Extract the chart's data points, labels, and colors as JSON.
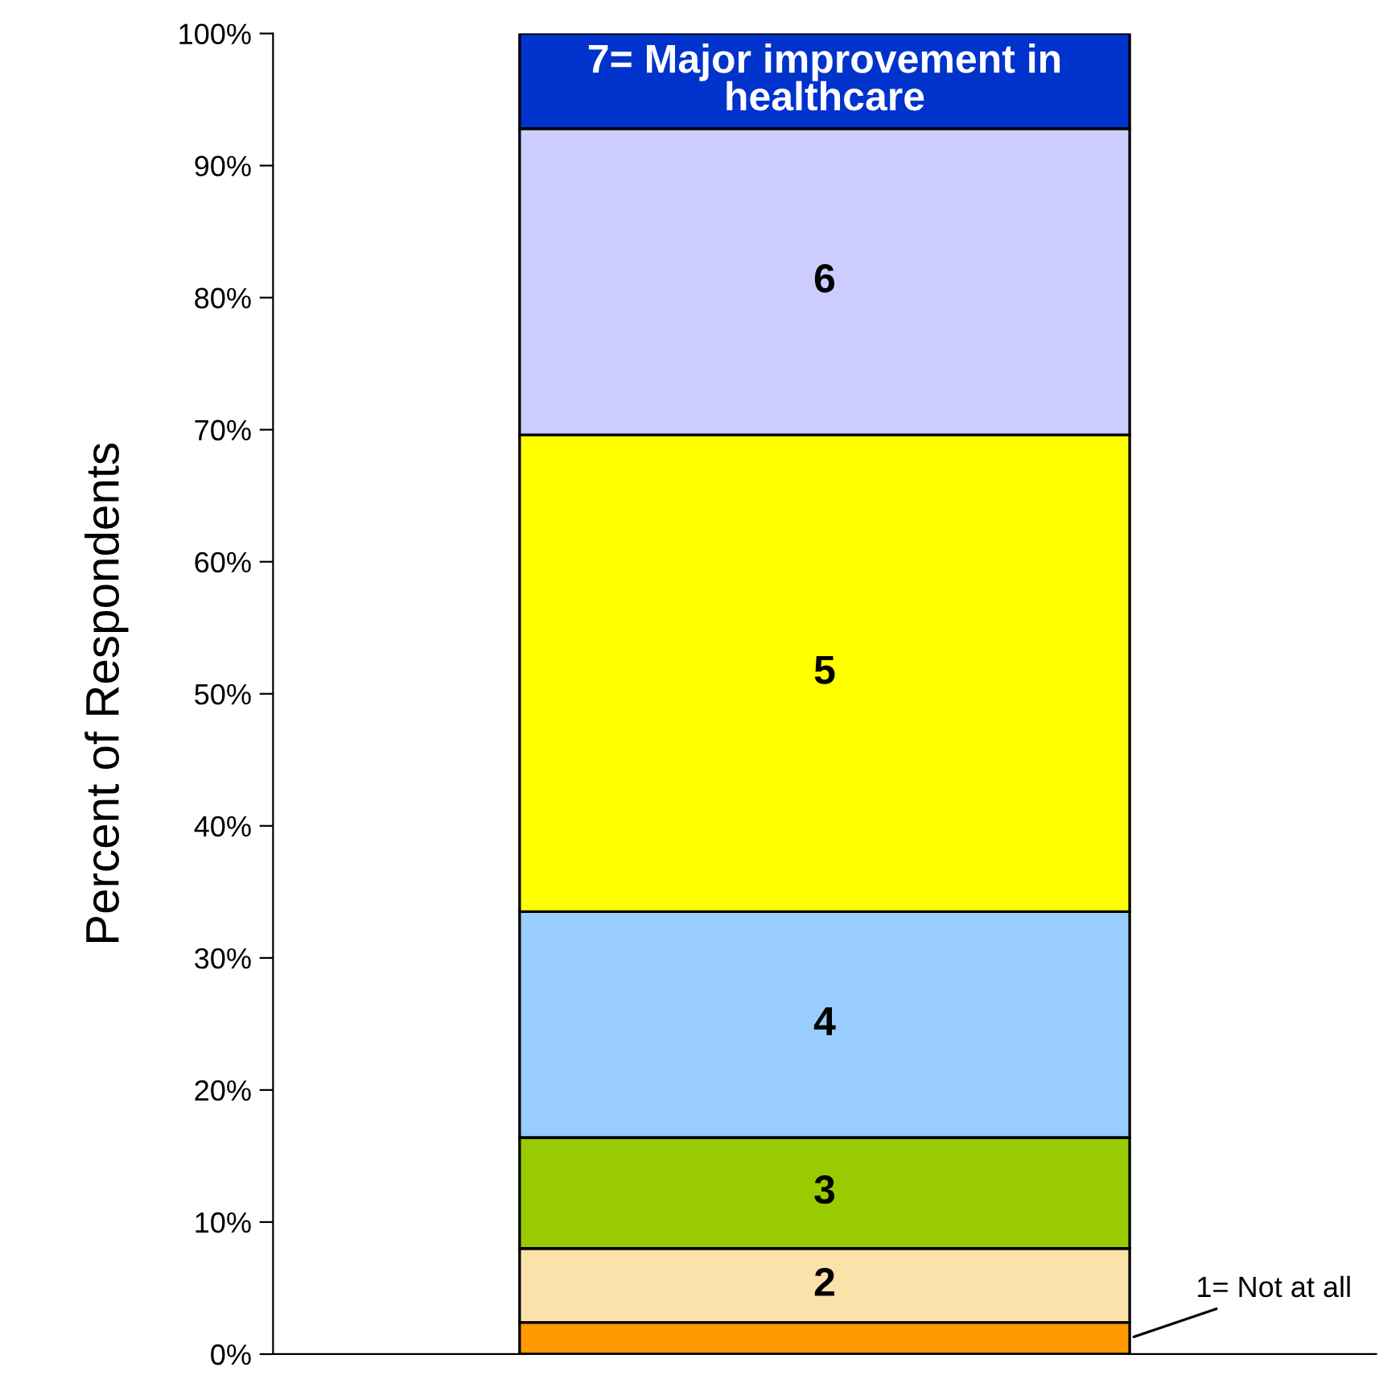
{
  "chart_data": {
    "type": "bar",
    "stacked": true,
    "ylabel": "Percent of Respondents",
    "categories": [
      null
    ],
    "series": [
      {
        "name": "1= Not at all",
        "color": "#ff9900",
        "values": [
          2.4
        ]
      },
      {
        "name": "2",
        "color": "#fae2aa",
        "values": [
          5.6
        ]
      },
      {
        "name": "3",
        "color": "#99cc00",
        "values": [
          8.4
        ]
      },
      {
        "name": "4",
        "color": "#99ccff",
        "values": [
          17.1
        ]
      },
      {
        "name": "5",
        "color": "#ffff00",
        "values": [
          36.1
        ]
      },
      {
        "name": "6",
        "color": "#ccccff",
        "values": [
          23.2
        ]
      },
      {
        "name": "7= Major improvement in healthcare",
        "color": "#0033cc",
        "values": [
          7.2
        ]
      }
    ],
    "ylim": [
      0,
      100
    ],
    "yticks": [
      {
        "value": 0,
        "label": "0%"
      },
      {
        "value": 10,
        "label": "10%"
      },
      {
        "value": 20,
        "label": "20%"
      },
      {
        "value": 30,
        "label": "30%"
      },
      {
        "value": 40,
        "label": "40%"
      },
      {
        "value": 50,
        "label": "50%"
      },
      {
        "value": 60,
        "label": "60%"
      },
      {
        "value": 70,
        "label": "70%"
      },
      {
        "value": 80,
        "label": "80%"
      },
      {
        "value": 90,
        "label": "90%"
      },
      {
        "value": 100,
        "label": "100%"
      }
    ],
    "grid": false
  }
}
